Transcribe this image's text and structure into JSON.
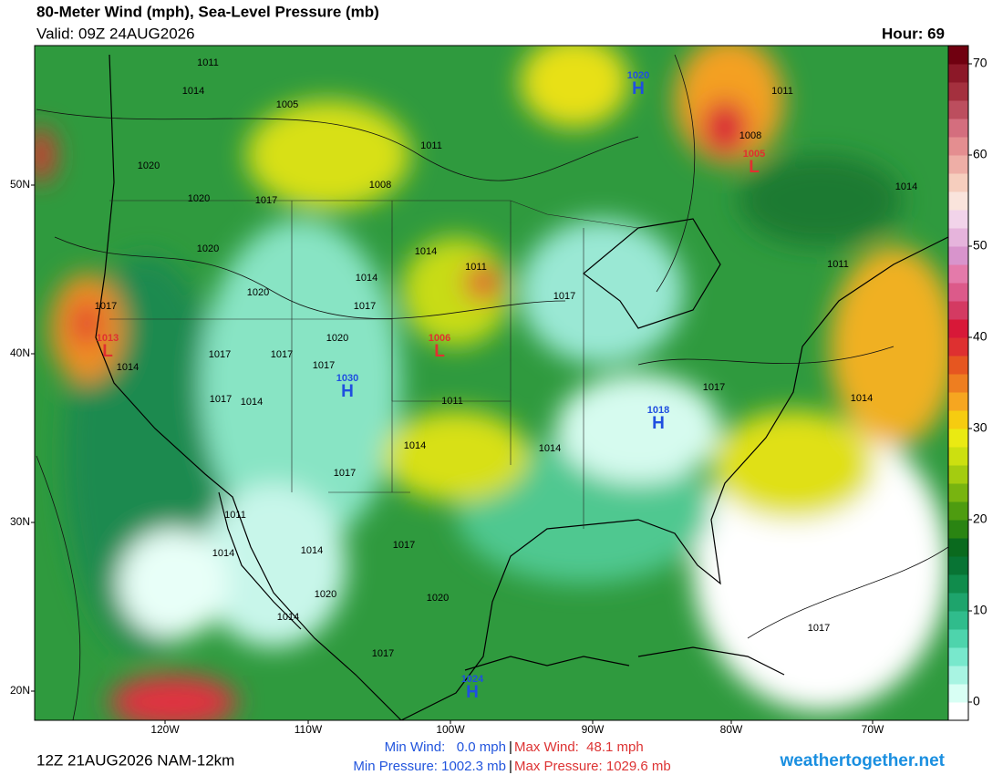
{
  "header": {
    "title": "80-Meter Wind (mph), Sea-Level Pressure (mb)",
    "valid": "Valid: 09Z 24AUG2026",
    "hour": "Hour: 69"
  },
  "latitude_labels": [
    "50N",
    "40N",
    "30N",
    "20N"
  ],
  "longitude_labels": [
    "120W",
    "110W",
    "100W",
    "90W",
    "80W",
    "70W"
  ],
  "pressure_centers": [
    {
      "letter": "H",
      "value": "1020",
      "color": "#1f4fe0"
    },
    {
      "letter": "L",
      "value": "1005",
      "color": "#e03030"
    },
    {
      "letter": "L",
      "value": "1013",
      "color": "#e03030"
    },
    {
      "letter": "L",
      "value": "1006",
      "color": "#e03030"
    },
    {
      "letter": "H",
      "value": "1030",
      "color": "#1f4fe0"
    },
    {
      "letter": "H",
      "value": "1018",
      "color": "#1f4fe0"
    },
    {
      "letter": "H",
      "value": "1024",
      "color": "#1f4fe0"
    }
  ],
  "isobar_labels": [
    "1011",
    "1014",
    "1005",
    "1011",
    "1020",
    "1008",
    "1020",
    "1017",
    "1020",
    "1014",
    "1011",
    "1014",
    "1020",
    "1017",
    "1017",
    "1017",
    "1020",
    "1017",
    "1017",
    "1017",
    "1014",
    "1017",
    "1014",
    "1011",
    "1017",
    "1014",
    "1011",
    "1011",
    "1014",
    "1014",
    "1014",
    "1017",
    "1011",
    "1014",
    "1014",
    "1017",
    "1020",
    "1020",
    "1014",
    "1017",
    "1017",
    "1008"
  ],
  "colorbar": {
    "lim": [
      -2,
      72
    ],
    "ticks": [
      0,
      10,
      20,
      30,
      40,
      50,
      60,
      70
    ],
    "colors": [
      "#ffffff",
      "#d8fff4",
      "#a8f4e2",
      "#78e8cc",
      "#4ed4ac",
      "#30bc8c",
      "#1ea46c",
      "#108c4c",
      "#087434",
      "#0a6a1e",
      "#2a8412",
      "#4e9c10",
      "#78b410",
      "#a4cc10",
      "#cce010",
      "#eaea12",
      "#f6cc10",
      "#f6a620",
      "#ee7e20",
      "#e65620",
      "#de3030",
      "#d81838",
      "#d43a62",
      "#dc5a8a",
      "#e47aaa",
      "#d894cc",
      "#e6b4dc",
      "#f2d4ea",
      "#fae4dc",
      "#f6cebe",
      "#eeaea6",
      "#e48e90",
      "#d46e7e",
      "#bc4e5e",
      "#a4303e",
      "#8c1828",
      "#700010"
    ]
  },
  "footer": {
    "run": "12Z 21AUG2026 NAM-12km",
    "min_wind": "Min Wind:   0.0 mph",
    "separator": "|",
    "max_wind": "Max Wind:  48.1 mph",
    "min_pressure": "Min Pressure: 1002.3 mb",
    "max_pressure": "Max Pressure: 1029.6 mb",
    "site": "weathertogether.net"
  }
}
